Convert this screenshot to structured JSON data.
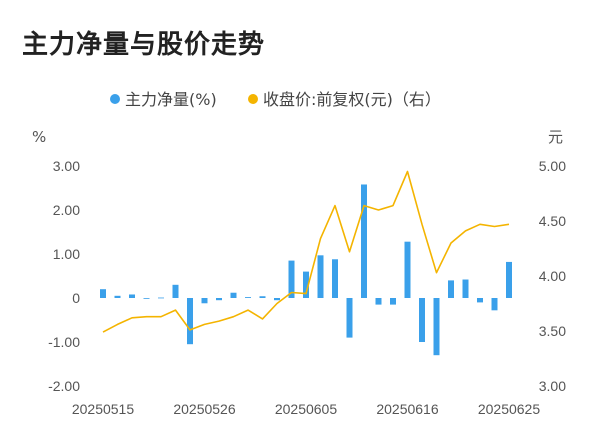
{
  "title": "主力净量与股价走势",
  "legend": {
    "left_label": "主力净量(%)",
    "right_label": "收盘价:前复权(元)（右）"
  },
  "axes": {
    "left_unit": "%",
    "right_unit": "元",
    "left_ticks": [
      "3.00",
      "2.00",
      "1.00",
      "0",
      "-1.00",
      "-2.00"
    ],
    "right_ticks": [
      "5.00",
      "4.50",
      "4.00",
      "3.50",
      "3.00"
    ]
  },
  "chart_data": {
    "type": "bar",
    "title": "主力净量与股价走势",
    "x_tick_labels": [
      "20250515",
      "20250526",
      "20250605",
      "20250616",
      "20250625"
    ],
    "x_tick_indices": [
      0,
      7,
      14,
      21,
      28
    ],
    "ylim_left": [
      -2,
      3
    ],
    "ylim_right": [
      3,
      5
    ],
    "colors": {
      "bar": "#3aa0ea",
      "line": "#f4b400"
    },
    "series": [
      {
        "name": "主力净量(%)",
        "axis": "left",
        "type": "bar",
        "values": [
          0.2,
          0.05,
          0.08,
          0.0,
          0.01,
          0.3,
          -1.05,
          -0.12,
          -0.05,
          0.12,
          0.02,
          0.04,
          -0.05,
          0.85,
          0.6,
          0.97,
          0.88,
          -0.9,
          2.58,
          -0.15,
          -0.15,
          1.28,
          -1.0,
          -1.3,
          0.4,
          0.42,
          -0.1,
          -0.28,
          0.82
        ]
      },
      {
        "name": "收盘价:前复权(元)（右）",
        "axis": "right",
        "type": "line",
        "values": [
          3.49,
          3.56,
          3.62,
          3.63,
          3.63,
          3.69,
          3.51,
          3.56,
          3.59,
          3.63,
          3.69,
          3.61,
          3.75,
          3.85,
          3.84,
          4.34,
          4.64,
          4.22,
          4.64,
          4.6,
          4.64,
          4.95,
          4.47,
          4.03,
          4.3,
          4.41,
          4.47,
          4.45,
          4.47
        ]
      }
    ]
  }
}
